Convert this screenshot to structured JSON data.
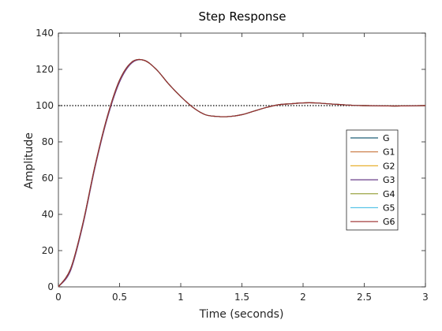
{
  "chart_data": {
    "type": "line",
    "title": "Step Response",
    "xlabel": "Time (seconds)",
    "ylabel": "Amplitude",
    "xlim": [
      0,
      3
    ],
    "ylim": [
      0,
      140
    ],
    "xticks": [
      0,
      0.5,
      1,
      1.5,
      2,
      2.5,
      3
    ],
    "xtick_labels": [
      "0",
      "0.5",
      "1",
      "1.5",
      "2",
      "2.5",
      "3"
    ],
    "yticks": [
      0,
      20,
      40,
      60,
      80,
      100,
      120,
      140
    ],
    "ytick_labels": [
      "0",
      "20",
      "40",
      "60",
      "80",
      "100",
      "120",
      "140"
    ],
    "grid": false,
    "legend_position": "right",
    "reference_line": {
      "y": 100,
      "style": "dotted",
      "color": "#000000"
    },
    "x": [
      0,
      0.1,
      0.2,
      0.3,
      0.4,
      0.5,
      0.6,
      0.7,
      0.8,
      0.9,
      1.0,
      1.1,
      1.2,
      1.3,
      1.4,
      1.5,
      1.6,
      1.7,
      1.8,
      1.9,
      2.0,
      2.1,
      2.2,
      2.3,
      2.4,
      2.5,
      2.6,
      2.7,
      2.8,
      2.9,
      3.0
    ],
    "series": [
      {
        "name": "G",
        "color": "#1f5f78",
        "values": [
          0,
          10,
          35,
          67,
          94,
          114,
          124,
          125,
          120,
          112,
          105,
          99,
          95,
          94,
          94,
          95,
          97,
          99,
          100.5,
          101,
          101.5,
          101.5,
          101,
          100.6,
          100.2,
          100,
          99.9,
          99.8,
          99.8,
          99.9,
          100
        ]
      },
      {
        "name": "G1",
        "color": "#c8743c",
        "values": [
          0,
          10,
          35,
          67,
          94,
          114,
          124,
          125,
          120,
          112,
          105,
          99,
          95,
          94,
          94,
          95,
          97,
          99,
          100.5,
          101,
          101.5,
          101.5,
          101,
          100.6,
          100.2,
          100,
          99.9,
          99.8,
          99.8,
          99.9,
          100
        ]
      },
      {
        "name": "G2",
        "color": "#e8b030",
        "values": [
          0,
          10,
          35,
          67,
          94,
          114,
          124,
          125,
          120,
          112,
          105,
          99,
          95,
          94,
          94,
          95,
          97,
          99,
          100.5,
          101,
          101.5,
          101.5,
          101,
          100.6,
          100.2,
          100,
          99.9,
          99.8,
          99.8,
          99.9,
          100
        ]
      },
      {
        "name": "G3",
        "color": "#6a3d8a",
        "values": [
          0,
          9,
          34,
          66,
          93,
          113,
          123.5,
          125,
          120,
          112,
          105,
          99,
          95,
          94,
          94,
          95,
          97,
          99,
          100.5,
          101,
          101.5,
          101.5,
          101,
          100.6,
          100.2,
          100,
          99.9,
          99.8,
          99.8,
          99.9,
          100
        ]
      },
      {
        "name": "G4",
        "color": "#8f9a2c",
        "values": [
          0,
          10,
          35,
          67,
          94,
          114,
          124,
          125,
          120,
          112,
          105,
          99,
          95,
          94,
          94,
          95,
          97,
          99,
          100.5,
          101,
          101.5,
          101.5,
          101,
          100.6,
          100.2,
          100,
          99.9,
          99.8,
          99.8,
          99.9,
          100
        ]
      },
      {
        "name": "G5",
        "color": "#5bc4e8",
        "values": [
          0,
          10,
          35,
          67,
          94,
          114,
          124,
          125,
          120,
          112,
          105,
          99,
          95,
          94,
          94,
          95,
          97,
          99,
          100.5,
          101,
          101.5,
          101.5,
          101,
          100.6,
          100.2,
          100,
          99.9,
          99.8,
          99.8,
          99.9,
          100
        ]
      },
      {
        "name": "G6",
        "color": "#9a2a2a",
        "values": [
          0,
          10,
          35,
          67,
          94,
          114,
          124,
          125,
          120,
          112,
          105,
          99,
          95,
          94,
          94,
          95,
          97,
          99,
          100.5,
          101,
          101.5,
          101.5,
          101,
          100.6,
          100.2,
          100,
          99.9,
          99.8,
          99.8,
          99.9,
          100
        ]
      }
    ]
  }
}
